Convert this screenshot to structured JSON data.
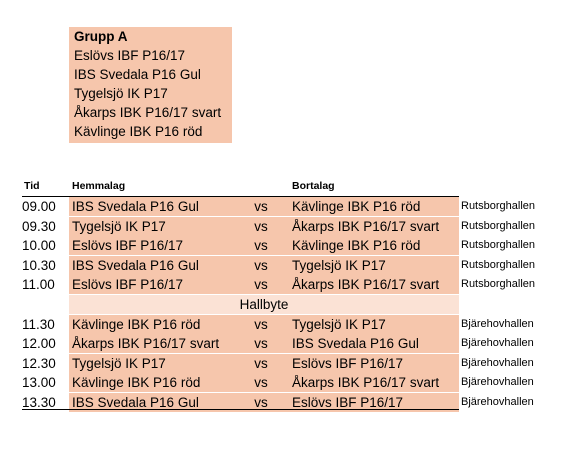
{
  "group": {
    "title": "Grupp A",
    "teams": [
      "Eslövs IBF P16/17",
      "IBS Svedala P16 Gul",
      "Tygelsjö IK P17",
      "Åkarps IBK P16/17 svart",
      "Kävlinge IBK P16 röd"
    ]
  },
  "schedule": {
    "headers": {
      "time": "Tid",
      "home": "Hemmalag",
      "away": "Bortalag"
    },
    "vs_label": "vs",
    "break_label": "Hallbyte",
    "matches_first": [
      {
        "time": "09.00",
        "home": "IBS Svedala P16 Gul",
        "away": "Kävlinge IBK P16 röd",
        "venue": "Rutsborghallen"
      },
      {
        "time": "09.30",
        "home": "Tygelsjö IK P17",
        "away": "Åkarps IBK P16/17 svart",
        "venue": "Rutsborghallen"
      },
      {
        "time": "10.00",
        "home": "Eslövs IBF P16/17",
        "away": "Kävlinge IBK P16 röd",
        "venue": "Rutsborghallen"
      },
      {
        "time": "10.30",
        "home": "IBS Svedala P16 Gul",
        "away": "Tygelsjö IK P17",
        "venue": "Rutsborghallen"
      },
      {
        "time": "11.00",
        "home": "Eslövs IBF P16/17",
        "away": "Åkarps IBK P16/17 svart",
        "venue": "Rutsborghallen"
      }
    ],
    "matches_second": [
      {
        "time": "11.30",
        "home": "Kävlinge IBK P16 röd",
        "away": "Tygelsjö IK P17",
        "venue": "Bjärehovhallen"
      },
      {
        "time": "12.00",
        "home": "Åkarps IBK P16/17 svart",
        "away": "IBS Svedala P16 Gul",
        "venue": "Bjärehovhallen"
      },
      {
        "time": "12.30",
        "home": "Tygelsjö IK P17",
        "away": "Eslövs IBF P16/17",
        "venue": "Bjärehovhallen"
      },
      {
        "time": "13.00",
        "home": "Kävlinge IBK P16 röd",
        "away": "Åkarps IBK P16/17 svart",
        "venue": "Bjärehovhallen"
      },
      {
        "time": "13.30",
        "home": "IBS Svedala P16 Gul",
        "away": "Eslövs IBF P16/17",
        "venue": "Bjärehovhallen"
      }
    ]
  }
}
